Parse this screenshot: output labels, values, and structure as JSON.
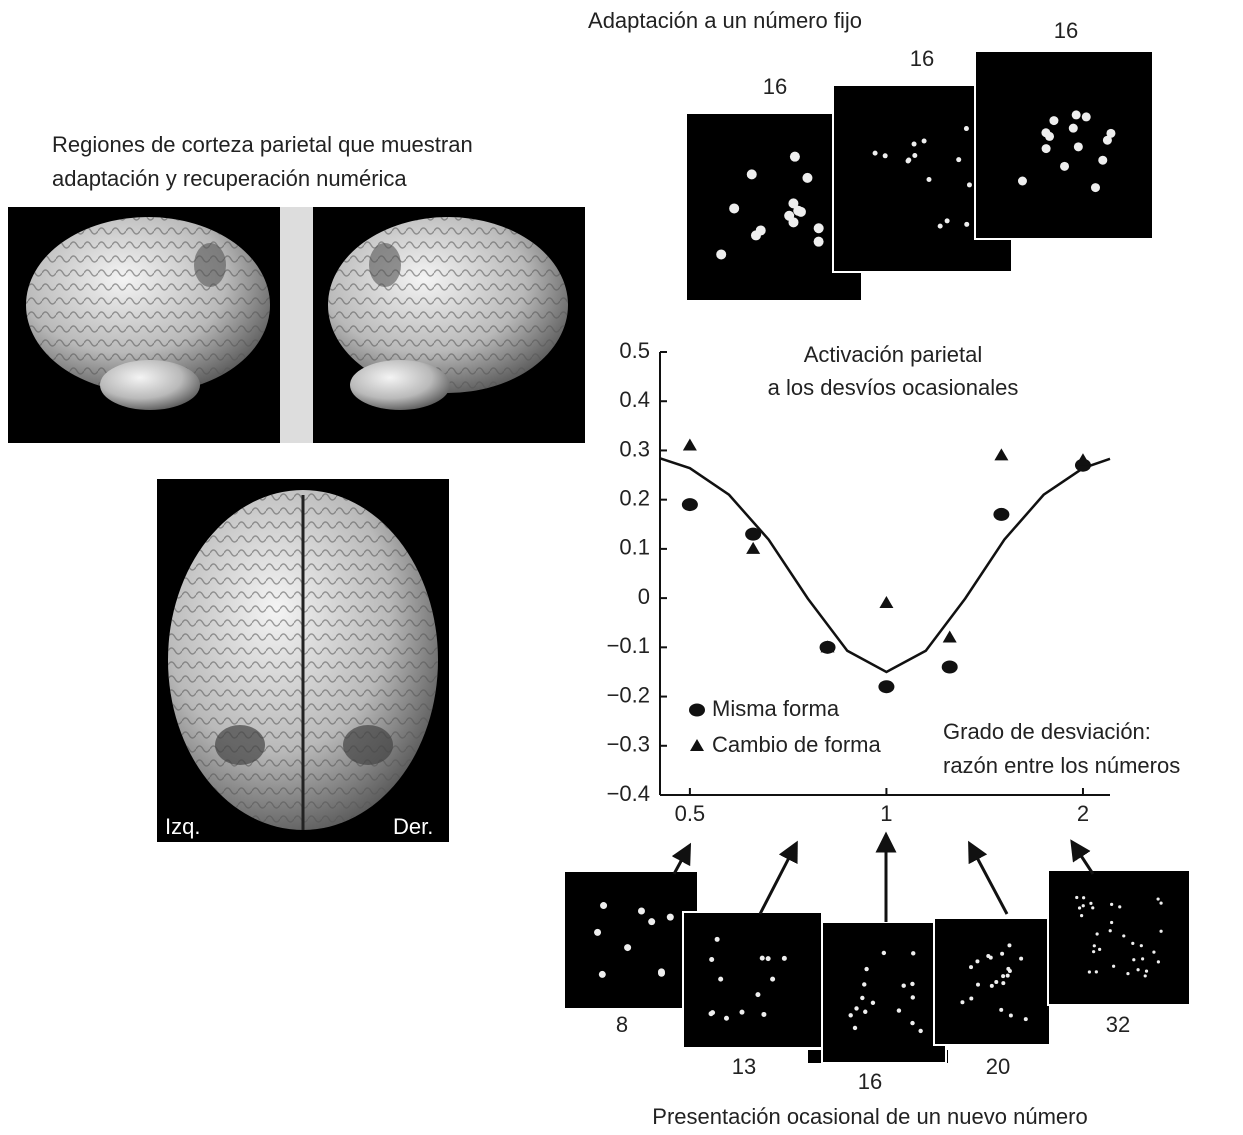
{
  "brain_panel": {
    "title_lines": [
      "Regiones de corteza parietal que muestran",
      "adaptación y recuperación numérica"
    ],
    "left_label": "Izq.",
    "right_label": "Der."
  },
  "adaptation": {
    "title": "Adaptación a un número fijo",
    "numbers": [
      16,
      16,
      16
    ]
  },
  "deviants": {
    "numbers": [
      8,
      13,
      16,
      20,
      32
    ],
    "caption": "Presentación ocasional de un nuevo número"
  },
  "chart_data": {
    "type": "scatter",
    "title_lines": [
      "Activación parietal",
      "a los desvíos ocasionales"
    ],
    "xlabel_lines": [
      "Grado de desviación:",
      "razón entre los números"
    ],
    "x": [
      0.5,
      0.625,
      0.8125,
      1,
      1.25,
      1.5,
      2
    ],
    "series": [
      {
        "name": "Misma forma",
        "marker": "circle",
        "color": "#111111",
        "values": [
          0.19,
          0.13,
          -0.1,
          -0.18,
          -0.14,
          0.17,
          0.27
        ]
      },
      {
        "name": "Cambio de forma",
        "marker": "triangle",
        "color": "#111111",
        "values": [
          0.31,
          0.1,
          -0.1,
          -0.01,
          -0.08,
          0.29,
          0.28
        ]
      }
    ],
    "fit": {
      "color": "#111111",
      "x": [
        0.45,
        0.5,
        0.574,
        0.66,
        0.758,
        0.871,
        1,
        1.149,
        1.32,
        1.516,
        1.741,
        2,
        2.2
      ],
      "values": [
        0.284,
        0.264,
        0.21,
        0.119,
        -0.001,
        -0.107,
        -0.15,
        -0.107,
        -0.001,
        0.119,
        0.21,
        0.264,
        0.283
      ]
    },
    "xscale": "log",
    "xlim": [
      0.45,
      2.2
    ],
    "xticks": [
      0.5,
      1,
      2
    ],
    "ylim": [
      -0.4,
      0.5
    ],
    "yticks": [
      {
        "value": -0.4,
        "label": "−0.4"
      },
      {
        "value": -0.3,
        "label": "−0.3"
      },
      {
        "value": -0.2,
        "label": "−0.2"
      },
      {
        "value": -0.1,
        "label": "−0.1"
      },
      0,
      0.1,
      0.2,
      0.3,
      0.4,
      0.5
    ]
  }
}
